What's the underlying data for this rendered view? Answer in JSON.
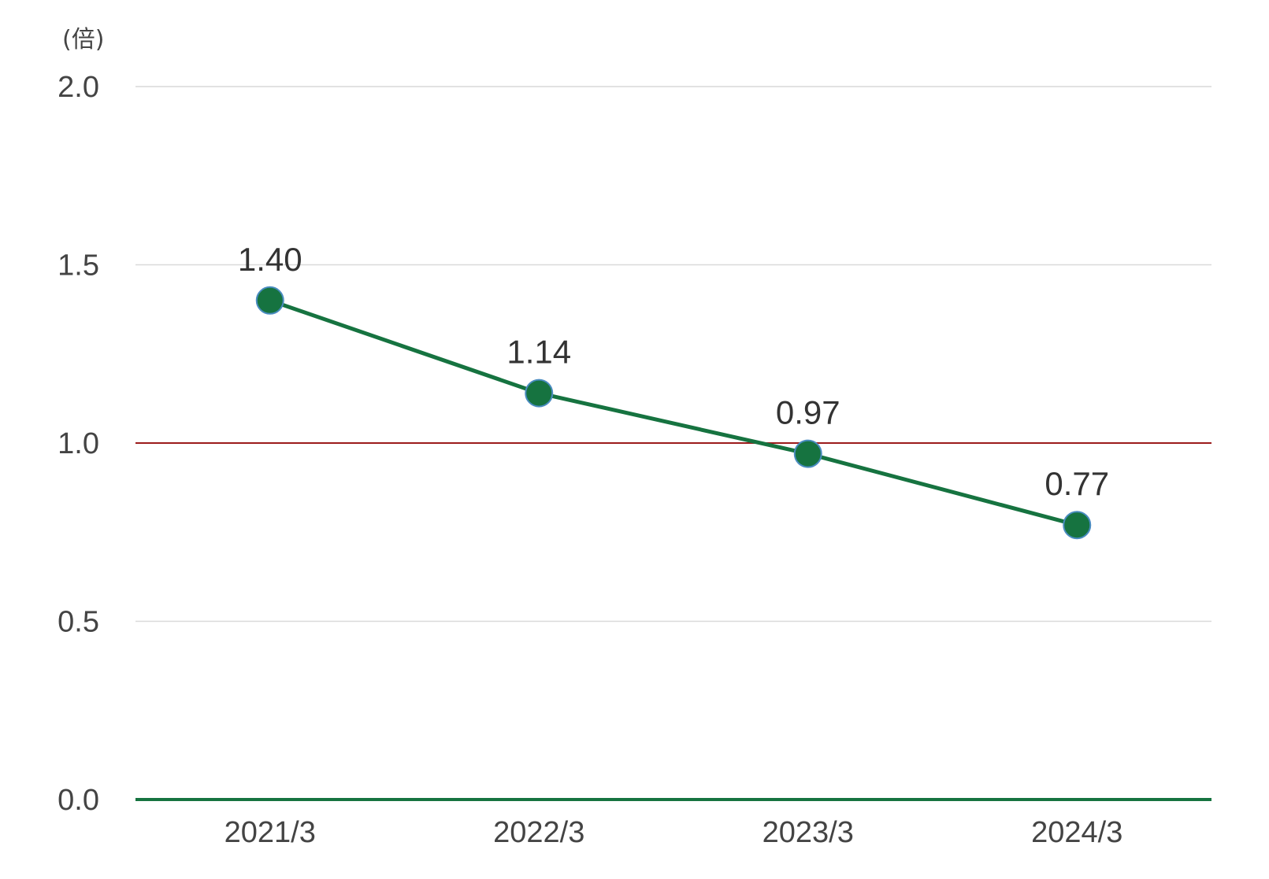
{
  "chart_data": {
    "type": "line",
    "title": "",
    "y_unit": "(倍)",
    "xlabel": "",
    "ylabel": "",
    "categories": [
      "2021/3",
      "2022/3",
      "2023/3",
      "2024/3"
    ],
    "series": [
      {
        "values": [
          1.4,
          1.14,
          0.97,
          0.77
        ],
        "data_labels": [
          "1.40",
          "1.14",
          "0.97",
          "0.77"
        ],
        "color": "#167340",
        "marker_edge_color": "#4a8cc0"
      }
    ],
    "ylim": [
      0.0,
      2.0
    ],
    "y_ticks": [
      0.0,
      0.5,
      1.0,
      1.5,
      2.0
    ],
    "y_tick_labels": [
      "0.0",
      "0.5",
      "1.0",
      "1.5",
      "2.0"
    ],
    "reference_line": {
      "value": 1.0,
      "color": "#9b1b1b"
    },
    "baseline_color": "#167340",
    "gridline_color": "#d9d9d9",
    "grid": true,
    "legend": "none"
  }
}
